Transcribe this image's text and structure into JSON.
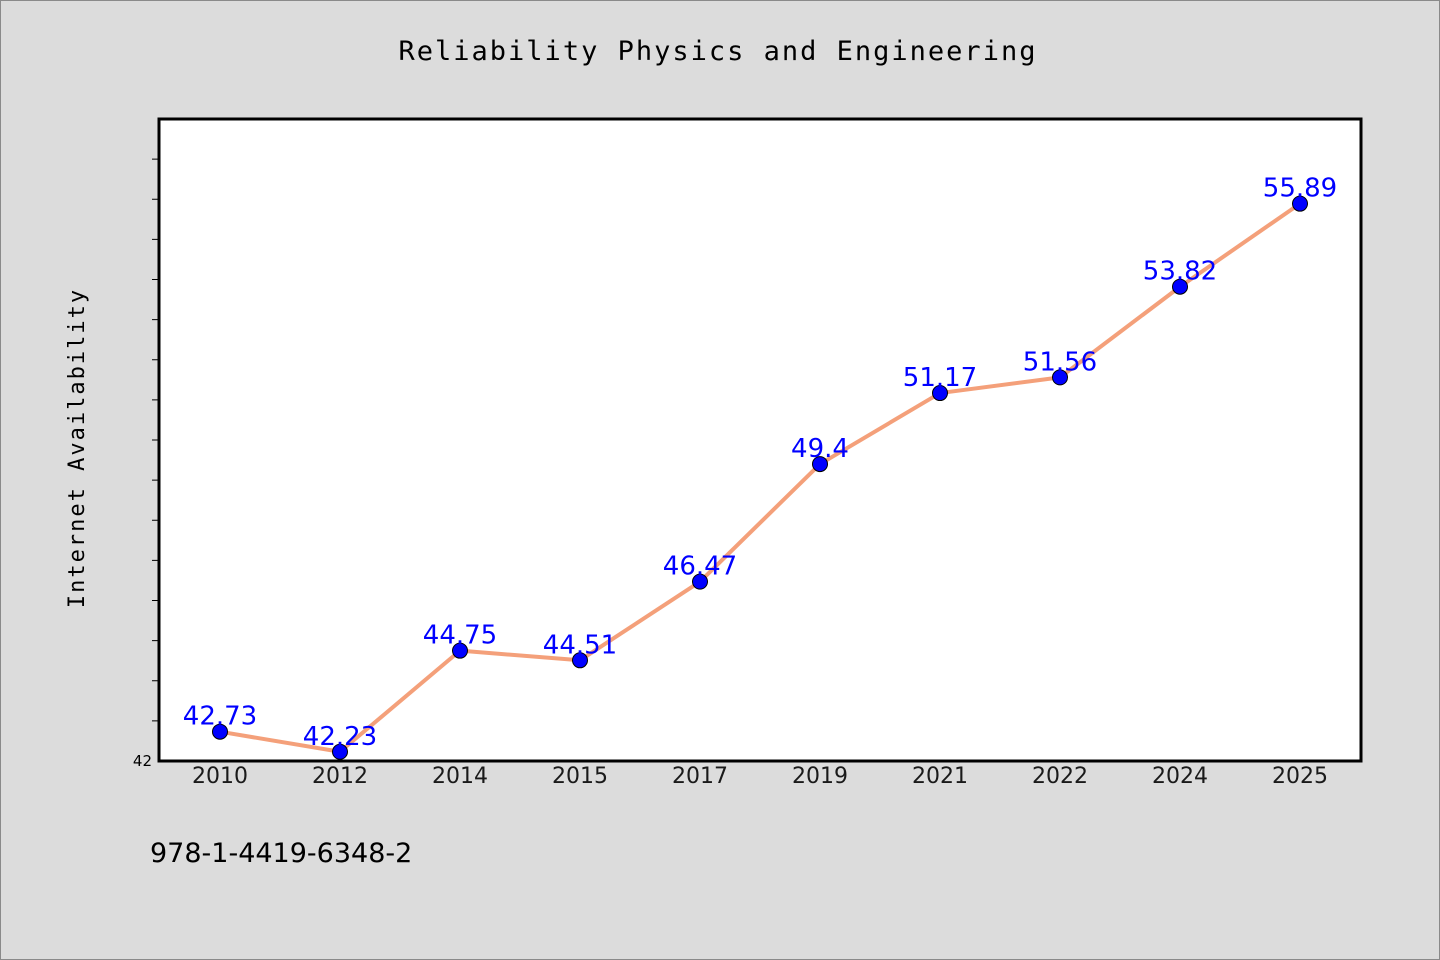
{
  "chart_data": {
    "type": "line",
    "title": "Reliability Physics and Engineering",
    "ylabel": "Internet Availability",
    "xlabel": "",
    "categories": [
      "2010",
      "2012",
      "2014",
      "2015",
      "2017",
      "2019",
      "2021",
      "2022",
      "2024",
      "2025"
    ],
    "values": [
      42.73,
      42.23,
      44.75,
      44.51,
      46.47,
      49.4,
      51.17,
      51.56,
      53.82,
      55.89
    ],
    "data_labels": [
      "42.73",
      "42.23",
      "44.75",
      "44.51",
      "46.47",
      "49.4",
      "51.17",
      "51.56",
      "53.82",
      "55.89"
    ],
    "ylim": [
      42,
      58
    ],
    "yticks_labeled": [
      "42"
    ],
    "grid": false,
    "line_color": "#f4a07a",
    "marker_color": "#0000ff",
    "label_color": "#0000ff",
    "plot_background": "#ffffff",
    "page_background": "#dcdcdc"
  },
  "footer": {
    "isbn": "978-1-4419-6348-2"
  }
}
